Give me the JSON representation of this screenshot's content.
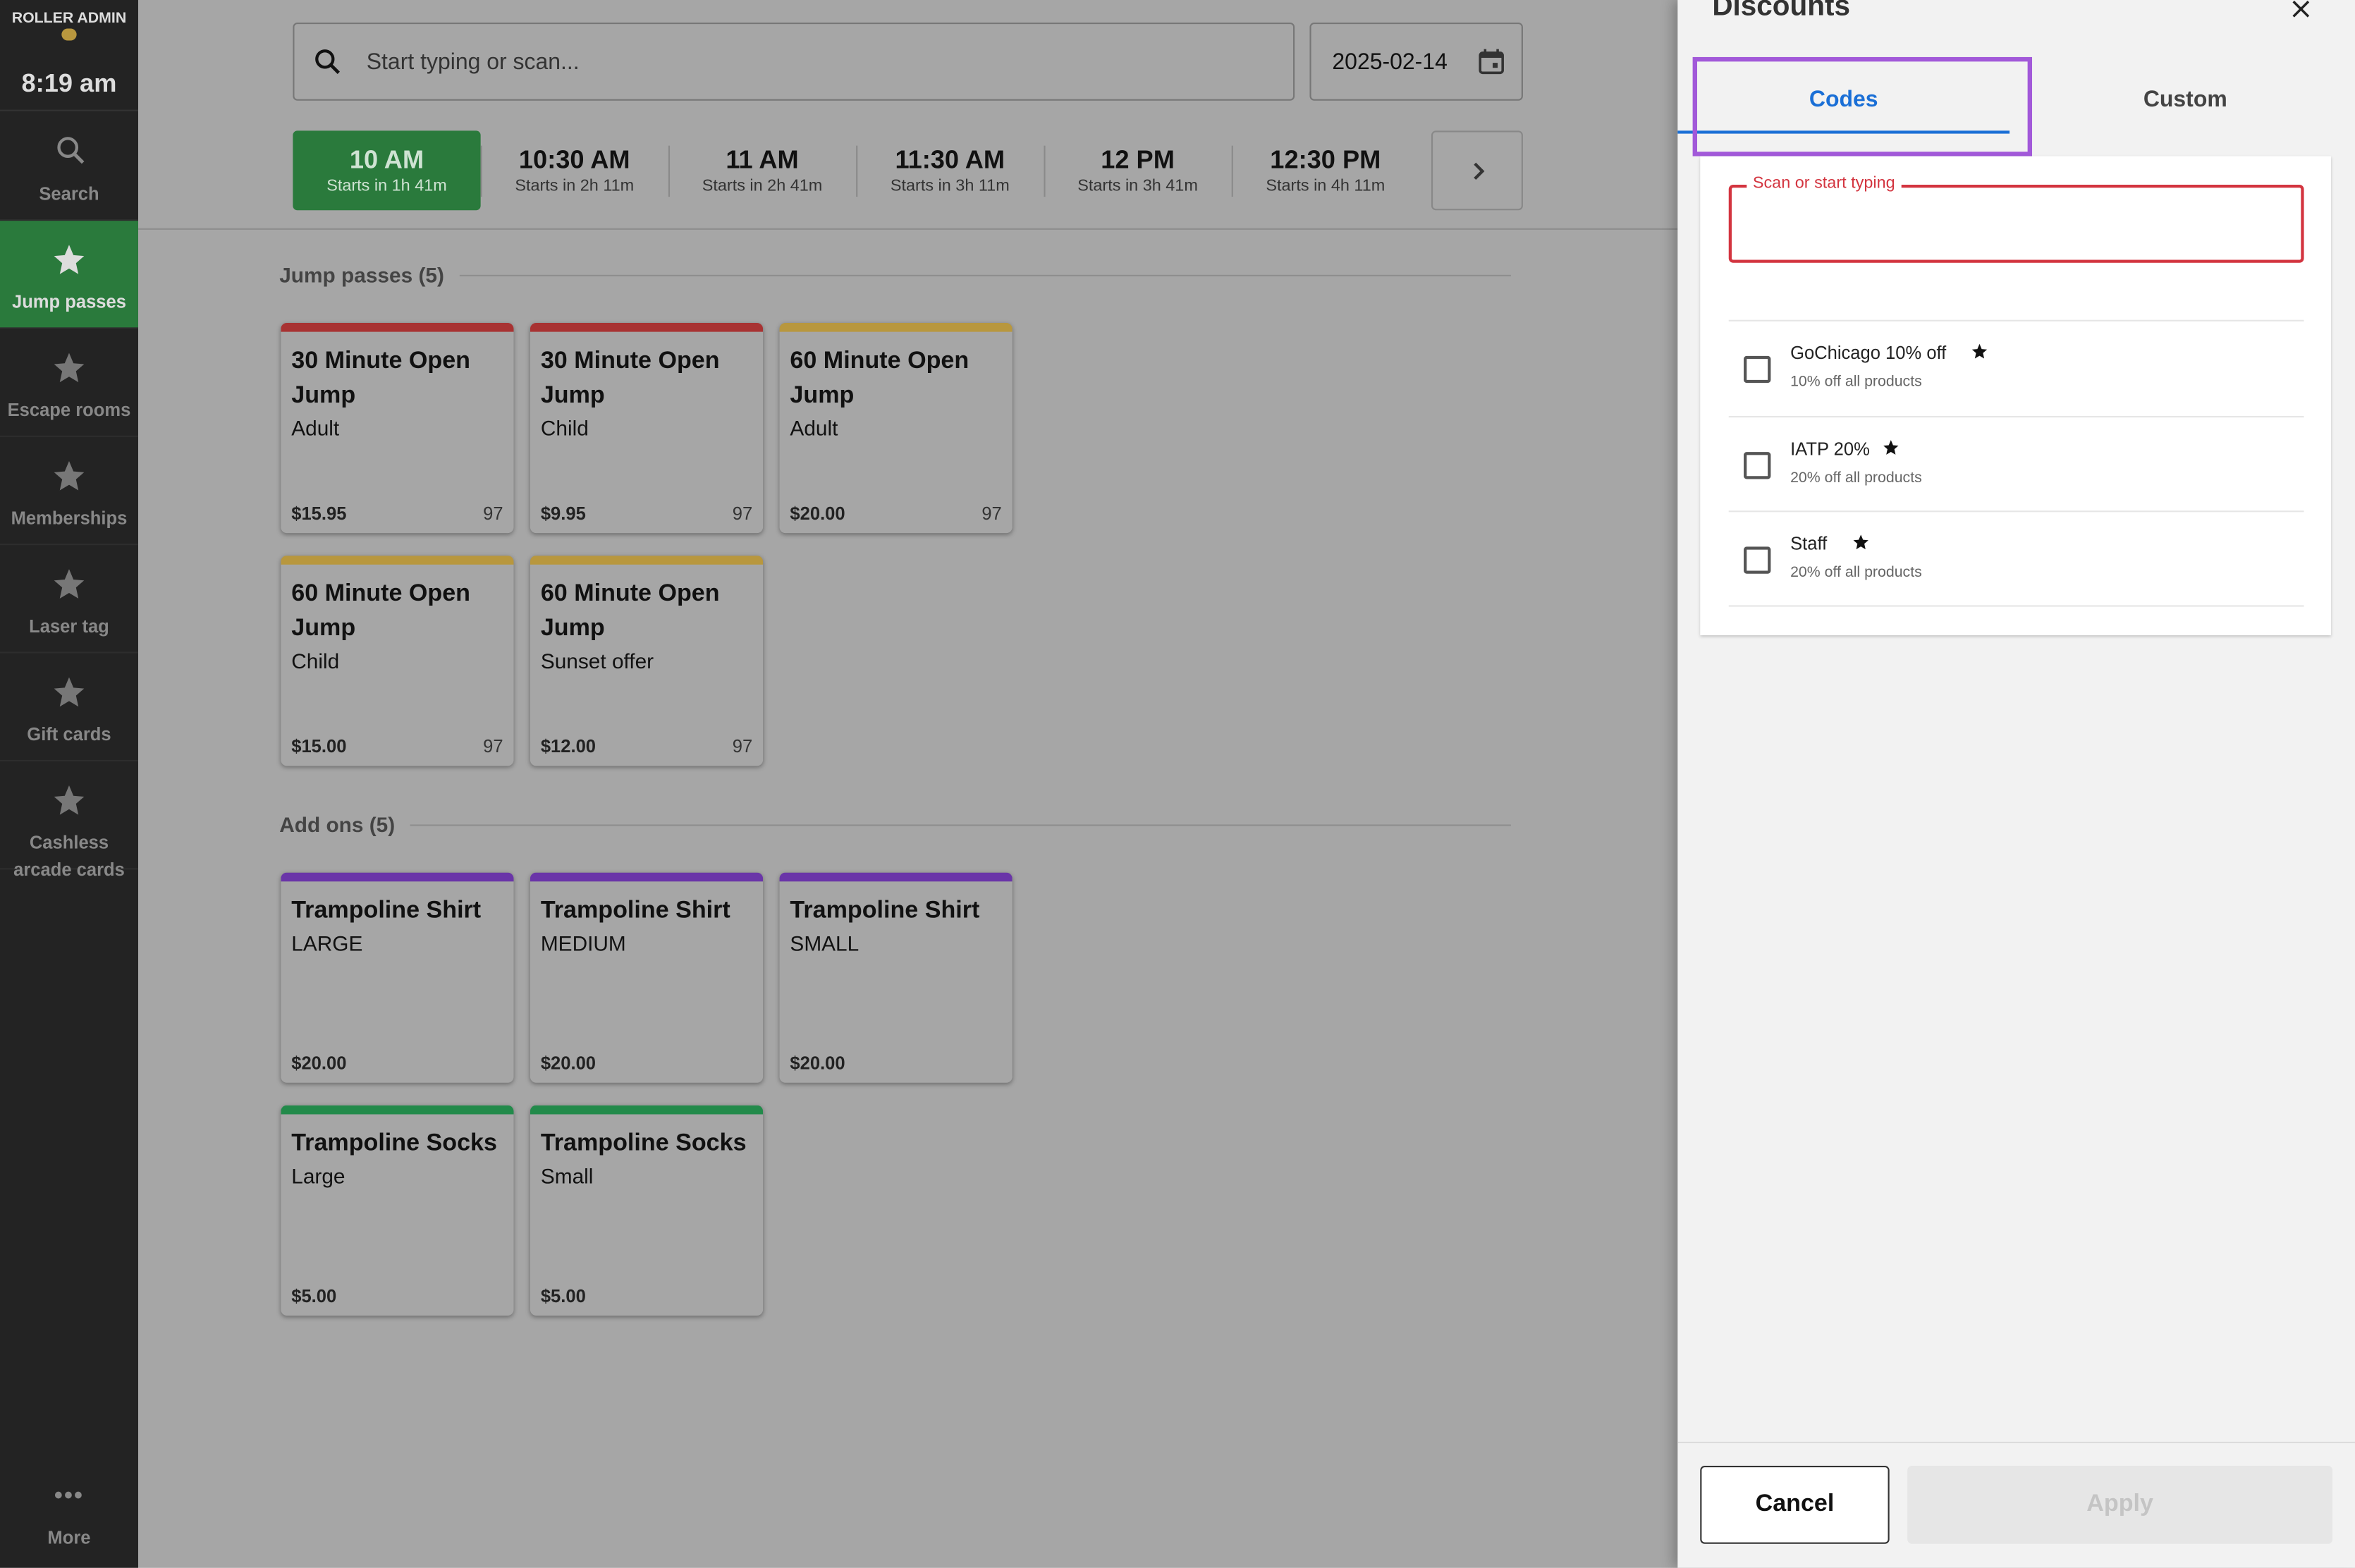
{
  "sidebar": {
    "brand": "ROLLER ADMIN",
    "time": "8:19 am",
    "items": [
      "Search",
      "Jump passes",
      "Escape rooms",
      "Memberships",
      "Laser tag",
      "Gift cards",
      "Cashless arcade cards"
    ],
    "active": 1,
    "more": "More"
  },
  "search": {
    "placeholder": "Start typing or scan...",
    "date": "2025-02-14"
  },
  "timeslots": [
    {
      "time": "10 AM",
      "note": "Starts in 1h 41m"
    },
    {
      "time": "10:30 AM",
      "note": "Starts in 2h 11m"
    },
    {
      "time": "11 AM",
      "note": "Starts in 2h 41m"
    },
    {
      "time": "11:30 AM",
      "note": "Starts in 3h 11m"
    },
    {
      "time": "12 PM",
      "note": "Starts in 3h 41m"
    },
    {
      "time": "12:30 PM",
      "note": "Starts in 4h 11m"
    }
  ],
  "sections": [
    {
      "title": "Jump passes (5)",
      "products": [
        {
          "name": "30 Minute Open Jump",
          "variant": "Adult",
          "price": "$15.95",
          "stock": 97,
          "color": "#a83232"
        },
        {
          "name": "30 Minute Open Jump",
          "variant": "Child",
          "price": "$9.95",
          "stock": 97,
          "color": "#a83232"
        },
        {
          "name": "60 Minute Open Jump",
          "variant": "Adult",
          "price": "$20.00",
          "stock": 97,
          "color": "#b8973e"
        },
        {
          "name": "60 Minute Open Jump",
          "variant": "Child",
          "price": "$15.00",
          "stock": 97,
          "color": "#b8973e"
        },
        {
          "name": "60 Minute Open Jump",
          "variant": "Sunset offer",
          "price": "$12.00",
          "stock": 97,
          "color": "#b8973e"
        }
      ]
    },
    {
      "title": "Add ons (5)",
      "products": [
        {
          "name": "Trampoline Shirt",
          "variant": "LARGE",
          "price": "$20.00",
          "color": "#6a35a8"
        },
        {
          "name": "Trampoline Shirt",
          "variant": "MEDIUM",
          "price": "$20.00",
          "color": "#6a35a8"
        },
        {
          "name": "Trampoline Shirt",
          "variant": "SMALL",
          "price": "$20.00",
          "color": "#6a35a8"
        },
        {
          "name": "Trampoline Socks",
          "variant": "Large",
          "price": "$5.00",
          "color": "#228a4a"
        },
        {
          "name": "Trampoline Socks",
          "variant": "Small",
          "price": "$5.00",
          "color": "#228a4a"
        }
      ]
    }
  ],
  "discounts": {
    "title": "Discounts",
    "tabs": [
      "Codes",
      "Custom"
    ],
    "input_label": "Scan or start typing",
    "codes": [
      {
        "name": "GoChicago 10% off",
        "description": "10% off all products"
      },
      {
        "name": "IATP 20%",
        "description": "20% off all products"
      },
      {
        "name": "Staff",
        "description": "20% off all products"
      }
    ],
    "cancel": "Cancel",
    "apply": "Apply"
  }
}
